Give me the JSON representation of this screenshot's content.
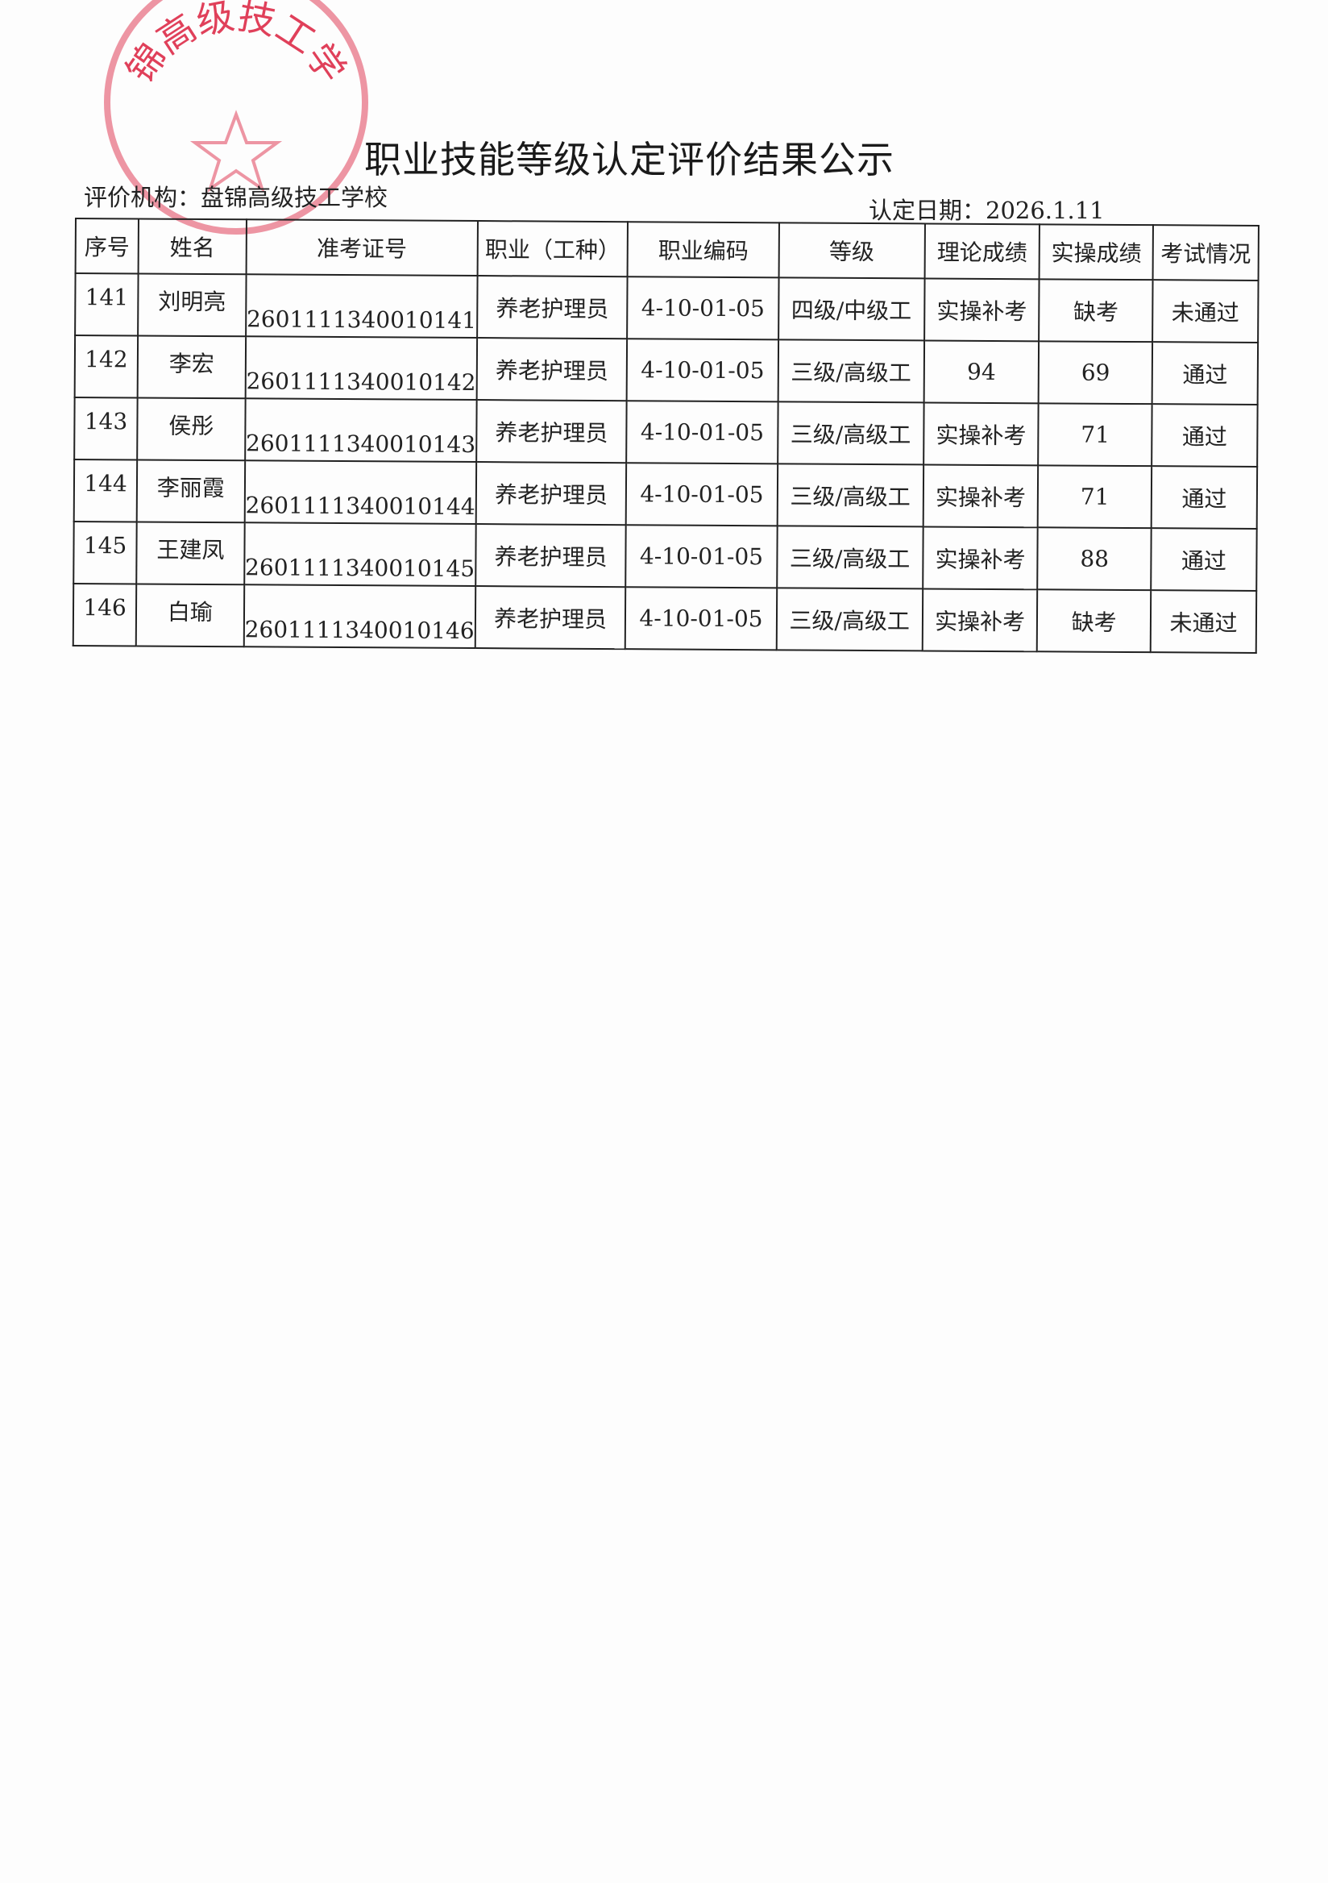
{
  "document": {
    "title": "职业技能等级认定评价结果公示",
    "organization": "评价机构：盘锦高级技工学校",
    "date": "认定日期：2026.1.11",
    "stamp": {
      "text": "盘锦高级技工学校",
      "color": "#e0405a"
    }
  },
  "table": {
    "headers": [
      "序号",
      "姓名",
      "准考证号",
      "职业（工种）",
      "职业编码",
      "等级",
      "理论成绩",
      "实操成绩",
      "考试情况"
    ],
    "rows": [
      [
        "141",
        "刘明亮",
        "2601111340010141",
        "养老护理员",
        "4-10-01-05",
        "四级/中级工",
        "实操补考",
        "缺考",
        "未通过"
      ],
      [
        "142",
        "李宏",
        "2601111340010142",
        "养老护理员",
        "4-10-01-05",
        "三级/高级工",
        "94",
        "69",
        "通过"
      ],
      [
        "143",
        "侯彤",
        "2601111340010143",
        "养老护理员",
        "4-10-01-05",
        "三级/高级工",
        "实操补考",
        "71",
        "通过"
      ],
      [
        "144",
        "李丽霞",
        "2601111340010144",
        "养老护理员",
        "4-10-01-05",
        "三级/高级工",
        "实操补考",
        "71",
        "通过"
      ],
      [
        "145",
        "王建凤",
        "2601111340010145",
        "养老护理员",
        "4-10-01-05",
        "三级/高级工",
        "实操补考",
        "88",
        "通过"
      ],
      [
        "146",
        "白瑜",
        "2601111340010146",
        "养老护理员",
        "4-10-01-05",
        "三级/高级工",
        "实操补考",
        "缺考",
        "未通过"
      ]
    ]
  }
}
